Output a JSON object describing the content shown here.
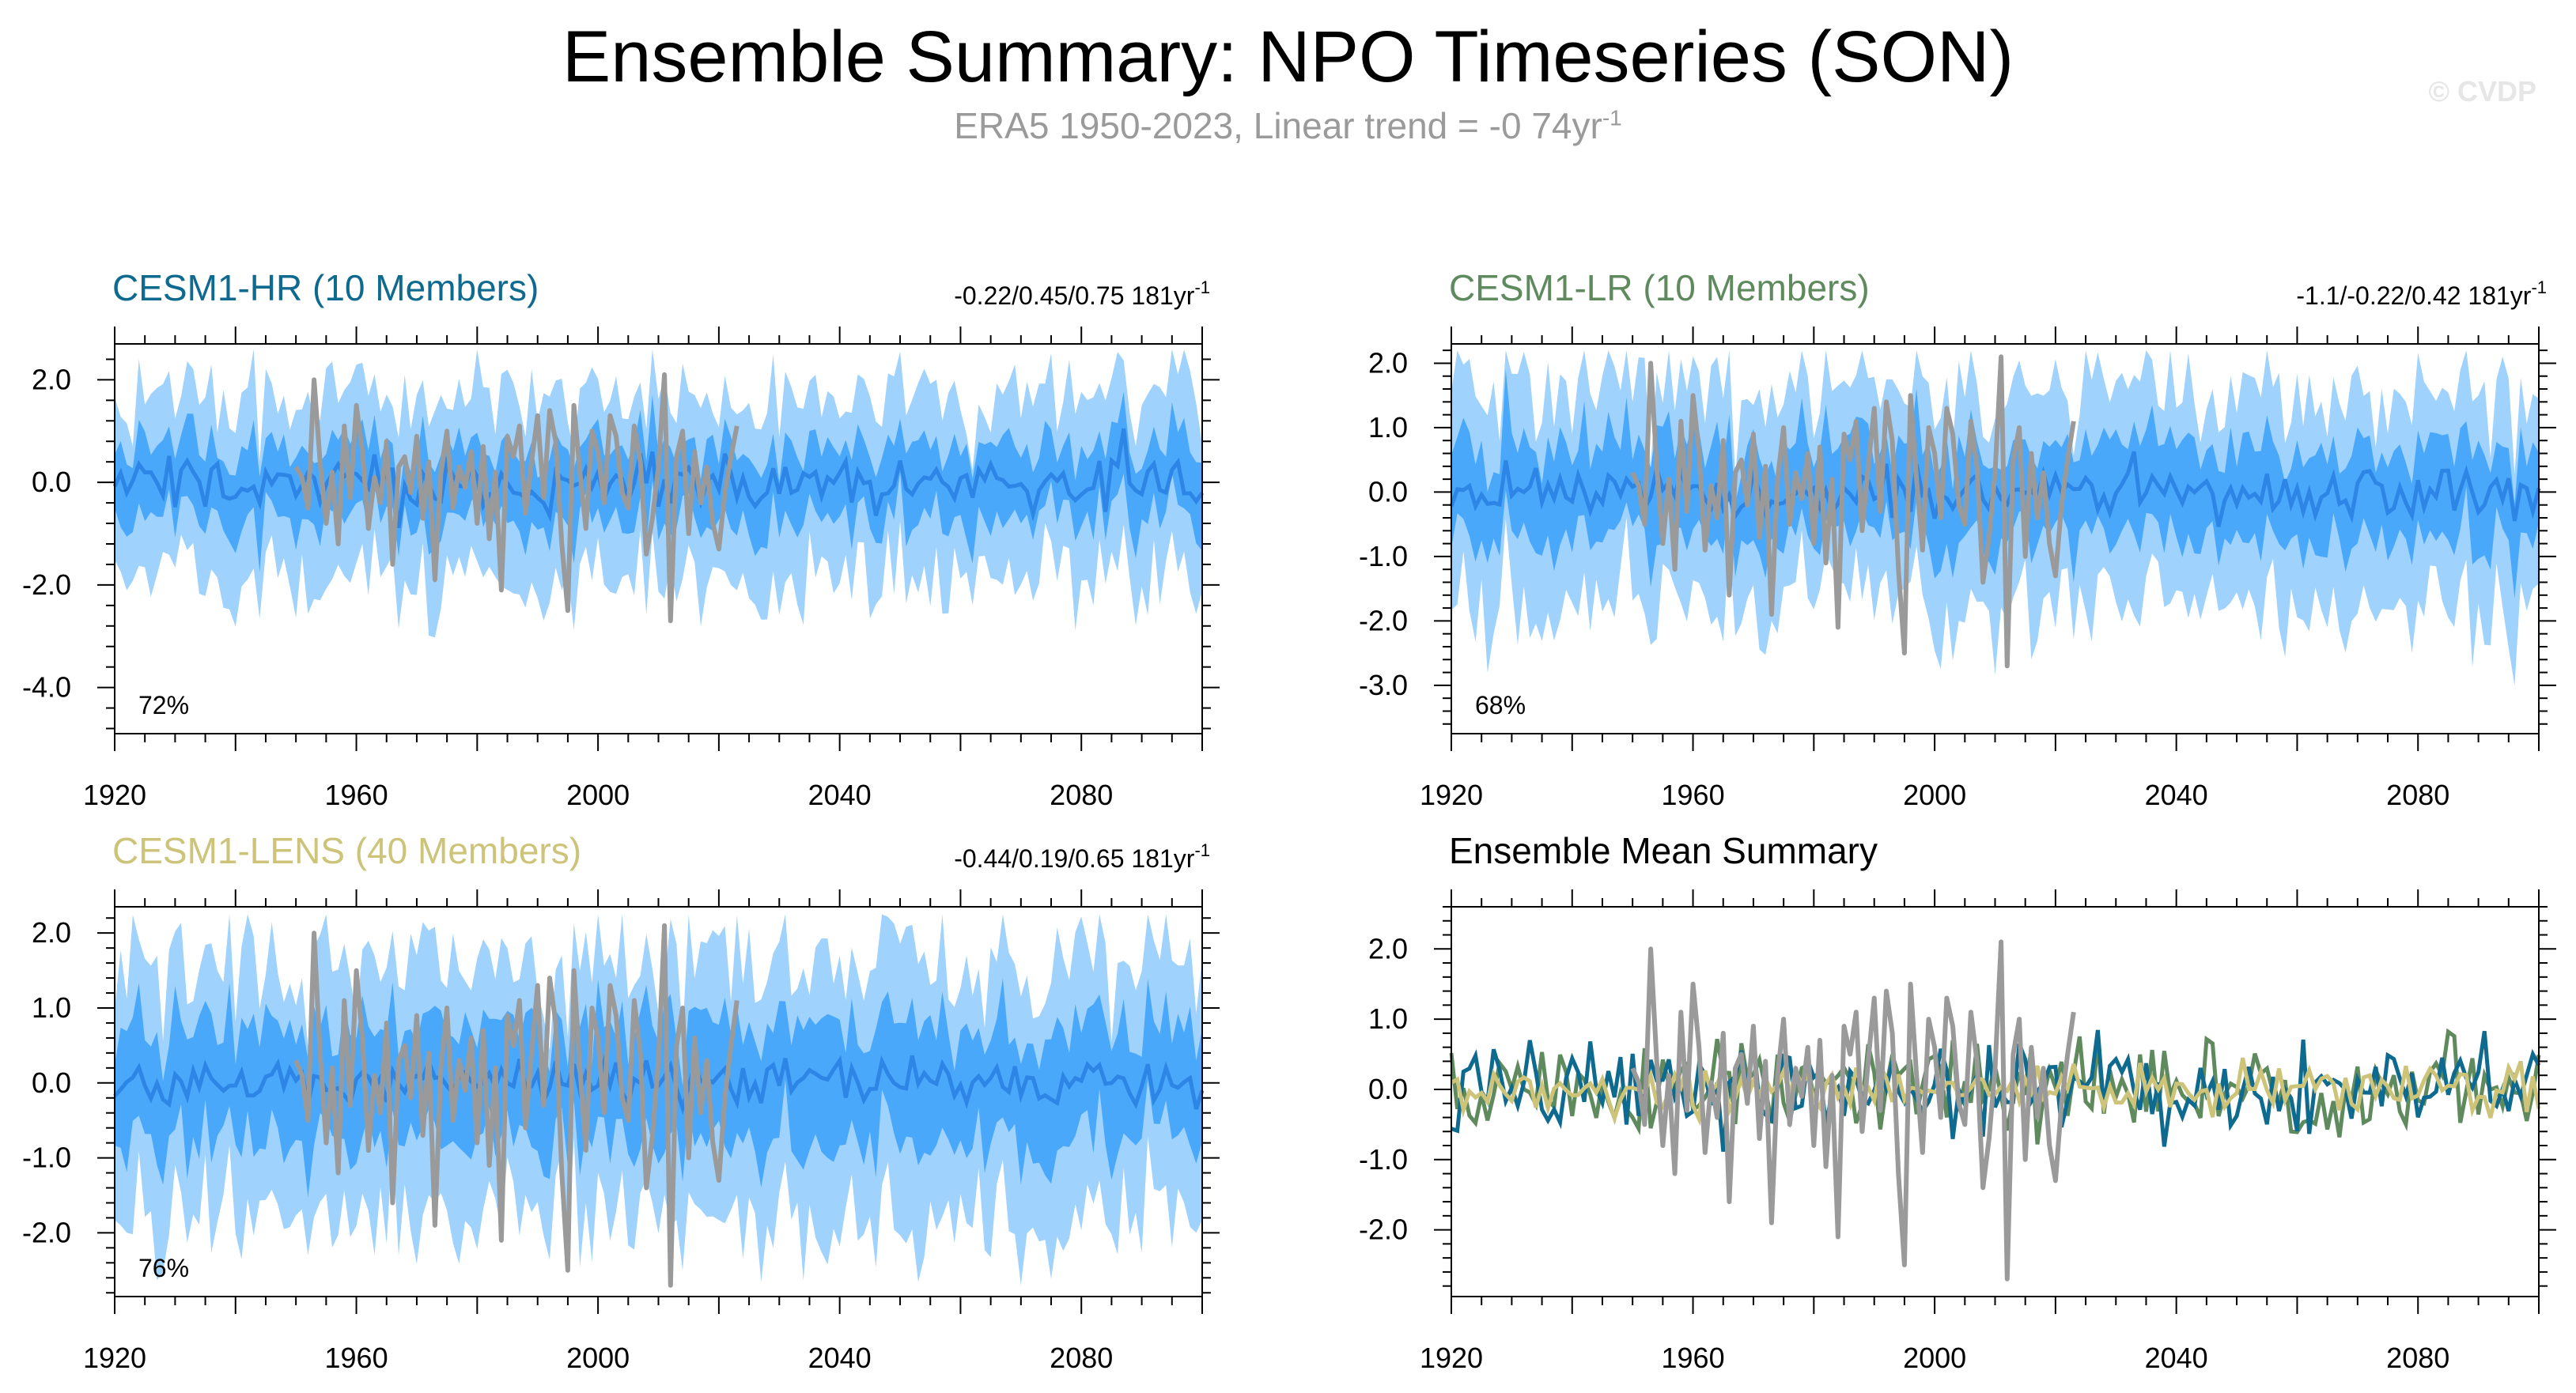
{
  "header": {
    "title": "Ensemble Summary: NPO Timeseries (SON)",
    "subtitle_main": "ERA5 1950-2023, Linear trend = -0 74yr",
    "subtitle_sup": "-1",
    "copyright": "© CVDP"
  },
  "colors": {
    "outer_band": "#9fd2fd",
    "inner_band": "#4aa8fb",
    "ens_mean": "#2d86e6",
    "obs": "#9a9a9a",
    "hr": "#0e6a8e",
    "lr": "#5e8a5e",
    "lens": "#cdc47a"
  },
  "chart_data": [
    {
      "id": "hr",
      "type": "line",
      "title": "CESM1-HR (10 Members)",
      "title_color": "#0e6a8e",
      "stats": "-0.22/0.45/0.75 181yr",
      "stats_sup": "-1",
      "percent": "72%",
      "x_range": [
        1920,
        2100
      ],
      "ylim": [
        -4.9,
        2.7
      ],
      "yticks": [
        2.0,
        0.0,
        -2.0,
        -4.0
      ],
      "ytick_labels": [
        "2.0",
        "0.0",
        "-2.0",
        "-4.0"
      ],
      "xticks": [
        1920,
        1960,
        2000,
        2040,
        2080
      ],
      "xtick_labels": [
        "1920",
        "1960",
        "2000",
        "2040",
        "2080"
      ],
      "seed": 11,
      "band_outer": 1.7,
      "band_inner": 0.75,
      "mean_amp": 0.35,
      "series": [
        "band_outer",
        "band_inner",
        "ensemble_mean",
        "ERA5"
      ]
    },
    {
      "id": "lr",
      "type": "line",
      "title": "CESM1-LR (10 Members)",
      "title_color": "#5e8a5e",
      "stats": "-1.1/-0.22/0.42 181yr",
      "stats_sup": "-1",
      "percent": "68%",
      "x_range": [
        1920,
        2100
      ],
      "ylim": [
        -3.75,
        2.3
      ],
      "yticks": [
        2.0,
        1.0,
        0.0,
        -1.0,
        -2.0,
        -3.0
      ],
      "ytick_labels": [
        "2.0",
        "1.0",
        "0.0",
        "-1.0",
        "-2.0",
        "-3.0"
      ],
      "xticks": [
        1920,
        1960,
        2000,
        2040,
        2080
      ],
      "xtick_labels": [
        "1920",
        "1960",
        "2000",
        "2040",
        "2080"
      ],
      "seed": 23,
      "band_outer": 1.6,
      "band_inner": 0.75,
      "mean_amp": 0.25,
      "series": [
        "band_outer",
        "band_inner",
        "ensemble_mean",
        "ERA5"
      ]
    },
    {
      "id": "lens",
      "type": "line",
      "title": "CESM1-LENS (40 Members)",
      "title_color": "#cdc47a",
      "stats": "-0.44/0.19/0.65 181yr",
      "stats_sup": "-1",
      "percent": "76%",
      "x_range": [
        1920,
        2100
      ],
      "ylim": [
        -2.85,
        2.35
      ],
      "yticks": [
        2.0,
        1.0,
        0.0,
        -1.0,
        -2.0
      ],
      "ytick_labels": [
        "2.0",
        "1.0",
        "0.0",
        "-1.0",
        "-2.0"
      ],
      "xticks": [
        1920,
        1960,
        2000,
        2040,
        2080
      ],
      "xtick_labels": [
        "1920",
        "1960",
        "2000",
        "2040",
        "2080"
      ],
      "seed": 37,
      "band_outer": 1.65,
      "band_inner": 0.8,
      "mean_amp": 0.2,
      "series": [
        "band_outer",
        "band_inner",
        "ensemble_mean",
        "ERA5"
      ]
    },
    {
      "id": "summary",
      "type": "line",
      "title": "Ensemble Mean Summary",
      "title_color": "#000000",
      "stats": "",
      "stats_sup": "",
      "percent": "",
      "x_range": [
        1920,
        2100
      ],
      "ylim": [
        -2.95,
        2.6
      ],
      "yticks": [
        2.0,
        1.0,
        0.0,
        -1.0,
        -2.0
      ],
      "ytick_labels": [
        "2.0",
        "1.0",
        "0.0",
        "-1.0",
        "-2.0"
      ],
      "xticks": [
        1920,
        1960,
        2000,
        2040,
        2080
      ],
      "xtick_labels": [
        "1920",
        "1960",
        "2000",
        "2040",
        "2080"
      ],
      "seed": 51,
      "series": [
        "ERA5",
        "CESM1-HR",
        "CESM1-LR",
        "CESM1-LENS"
      ]
    }
  ],
  "era5": {
    "years": [
      1950,
      2023
    ],
    "values": [
      0.3,
      0.1,
      -0.5,
      2.0,
      0.4,
      -0.8,
      0.2,
      -1.2,
      1.1,
      -0.3,
      1.5,
      0.6,
      -0.9,
      0.1,
      -0.4,
      0.8,
      -1.6,
      0.3,
      0.5,
      -0.2,
      0.9,
      -0.7,
      0.4,
      -1.9,
      0.2,
      1.0,
      -0.5,
      0.3,
      -0.1,
      0.6,
      -0.8,
      0.7,
      -1.1,
      0.2,
      -2.1,
      0.9,
      0.5,
      1.1,
      -0.6,
      0.4,
      1.3,
      -0.3,
      1.4,
      0.8,
      -1.2,
      -2.5,
      1.5,
      0.2,
      -0.9,
      1.0,
      0.6,
      -0.4,
      1.3,
      0.9,
      -0.2,
      -0.5,
      1.1,
      0.4,
      -1.4,
      -0.7,
      0.3,
      2.1,
      -2.7,
      0.5,
      1.0,
      -1.0,
      0.6,
      -0.4,
      0.3,
      -0.8,
      -1.3,
      -0.2,
      0.5,
      1.1
    ]
  }
}
